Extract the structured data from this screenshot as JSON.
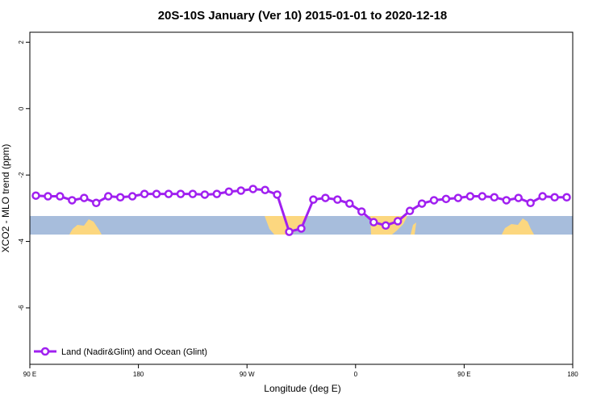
{
  "chart_data": {
    "type": "line",
    "title": "20S-10S January (Ver 10)   2015-01-01 to 2020-12-18",
    "x_label": "Longitude (deg E)",
    "y_label": "XCO2 - MLO trend (ppm)",
    "x": [
      95,
      105,
      115,
      125,
      135,
      145,
      155,
      165,
      175,
      185,
      195,
      205,
      215,
      225,
      235,
      245,
      255,
      265,
      275,
      285,
      295,
      305,
      315,
      325,
      335,
      345,
      355,
      365,
      375,
      385,
      395,
      405,
      415,
      425,
      435,
      445,
      455,
      465,
      475,
      485,
      495,
      505,
      515,
      525,
      535
    ],
    "series": [
      {
        "name": "Land (Nadir&Glint) and Ocean (Glint)",
        "color": "#a020f0",
        "values": [
          -2.62,
          -2.64,
          -2.64,
          -2.76,
          -2.69,
          -2.84,
          -2.64,
          -2.67,
          -2.64,
          -2.57,
          -2.57,
          -2.57,
          -2.57,
          -2.57,
          -2.59,
          -2.57,
          -2.5,
          -2.47,
          -2.42,
          -2.45,
          -2.59,
          -3.71,
          -3.61,
          -2.74,
          -2.69,
          -2.74,
          -2.86,
          -3.1,
          -3.42,
          -3.52,
          -3.39,
          -3.08,
          -2.86,
          -2.76,
          -2.72,
          -2.69,
          -2.64,
          -2.64,
          -2.67,
          -2.76,
          -2.69,
          -2.84,
          -2.64,
          -2.67,
          -2.67
        ]
      }
    ],
    "xlim": [
      90,
      540
    ],
    "xticks": [
      {
        "value": 90,
        "label": "90 E"
      },
      180,
      {
        "value": 270,
        "label": "90 W"
      },
      {
        "value": 360,
        "label": "0"
      },
      {
        "value": 450,
        "label": "90 E"
      },
      {
        "value": 540,
        "label": "180"
      }
    ],
    "ylim": [
      -7.7,
      2.3
    ],
    "yticks": [
      2,
      0,
      -2,
      -4,
      -6
    ],
    "legend": "bottom-left"
  }
}
